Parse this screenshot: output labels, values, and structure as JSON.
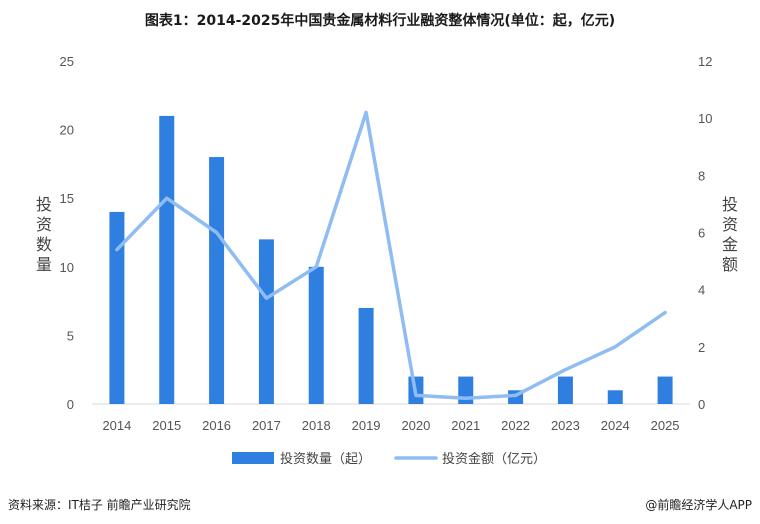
{
  "title": "图表1：2014-2025年中国贵金属材料行业融资整体情况(单位：起，亿元)",
  "footer": {
    "source": "资料来源：IT桔子 前瞻产业研究院",
    "brand": "@前瞻经济学人APP"
  },
  "colors": {
    "bar": "#2F7FE0",
    "line": "#8FBCF2",
    "gridline": "#d9d9d9",
    "watermark": "#e6e6e6"
  },
  "chart_data": {
    "type": "bar",
    "categories": [
      "2014",
      "2015",
      "2016",
      "2017",
      "2018",
      "2019",
      "2020",
      "2021",
      "2022",
      "2023",
      "2024",
      "2025"
    ],
    "series": [
      {
        "name": "投资数量（起）",
        "type": "bar",
        "axis": "left",
        "values": [
          14,
          21,
          18,
          12,
          10,
          7,
          2,
          2,
          1,
          2,
          1,
          2
        ]
      },
      {
        "name": "投资金额（亿元）",
        "type": "line",
        "axis": "right",
        "values": [
          5.4,
          7.2,
          6.0,
          3.7,
          4.8,
          10.2,
          0.3,
          0.2,
          0.3,
          1.2,
          2.0,
          3.2
        ]
      }
    ],
    "ylabel_left": "投资数量",
    "ylabel_right": "投资金额",
    "ylim_left": [
      0,
      25
    ],
    "yticks_left": [
      0,
      5,
      10,
      15,
      20,
      25
    ],
    "ylim_right": [
      0,
      12
    ],
    "yticks_right": [
      0,
      2,
      4,
      6,
      8,
      10,
      12
    ],
    "grid": false,
    "legend_position": "bottom"
  }
}
